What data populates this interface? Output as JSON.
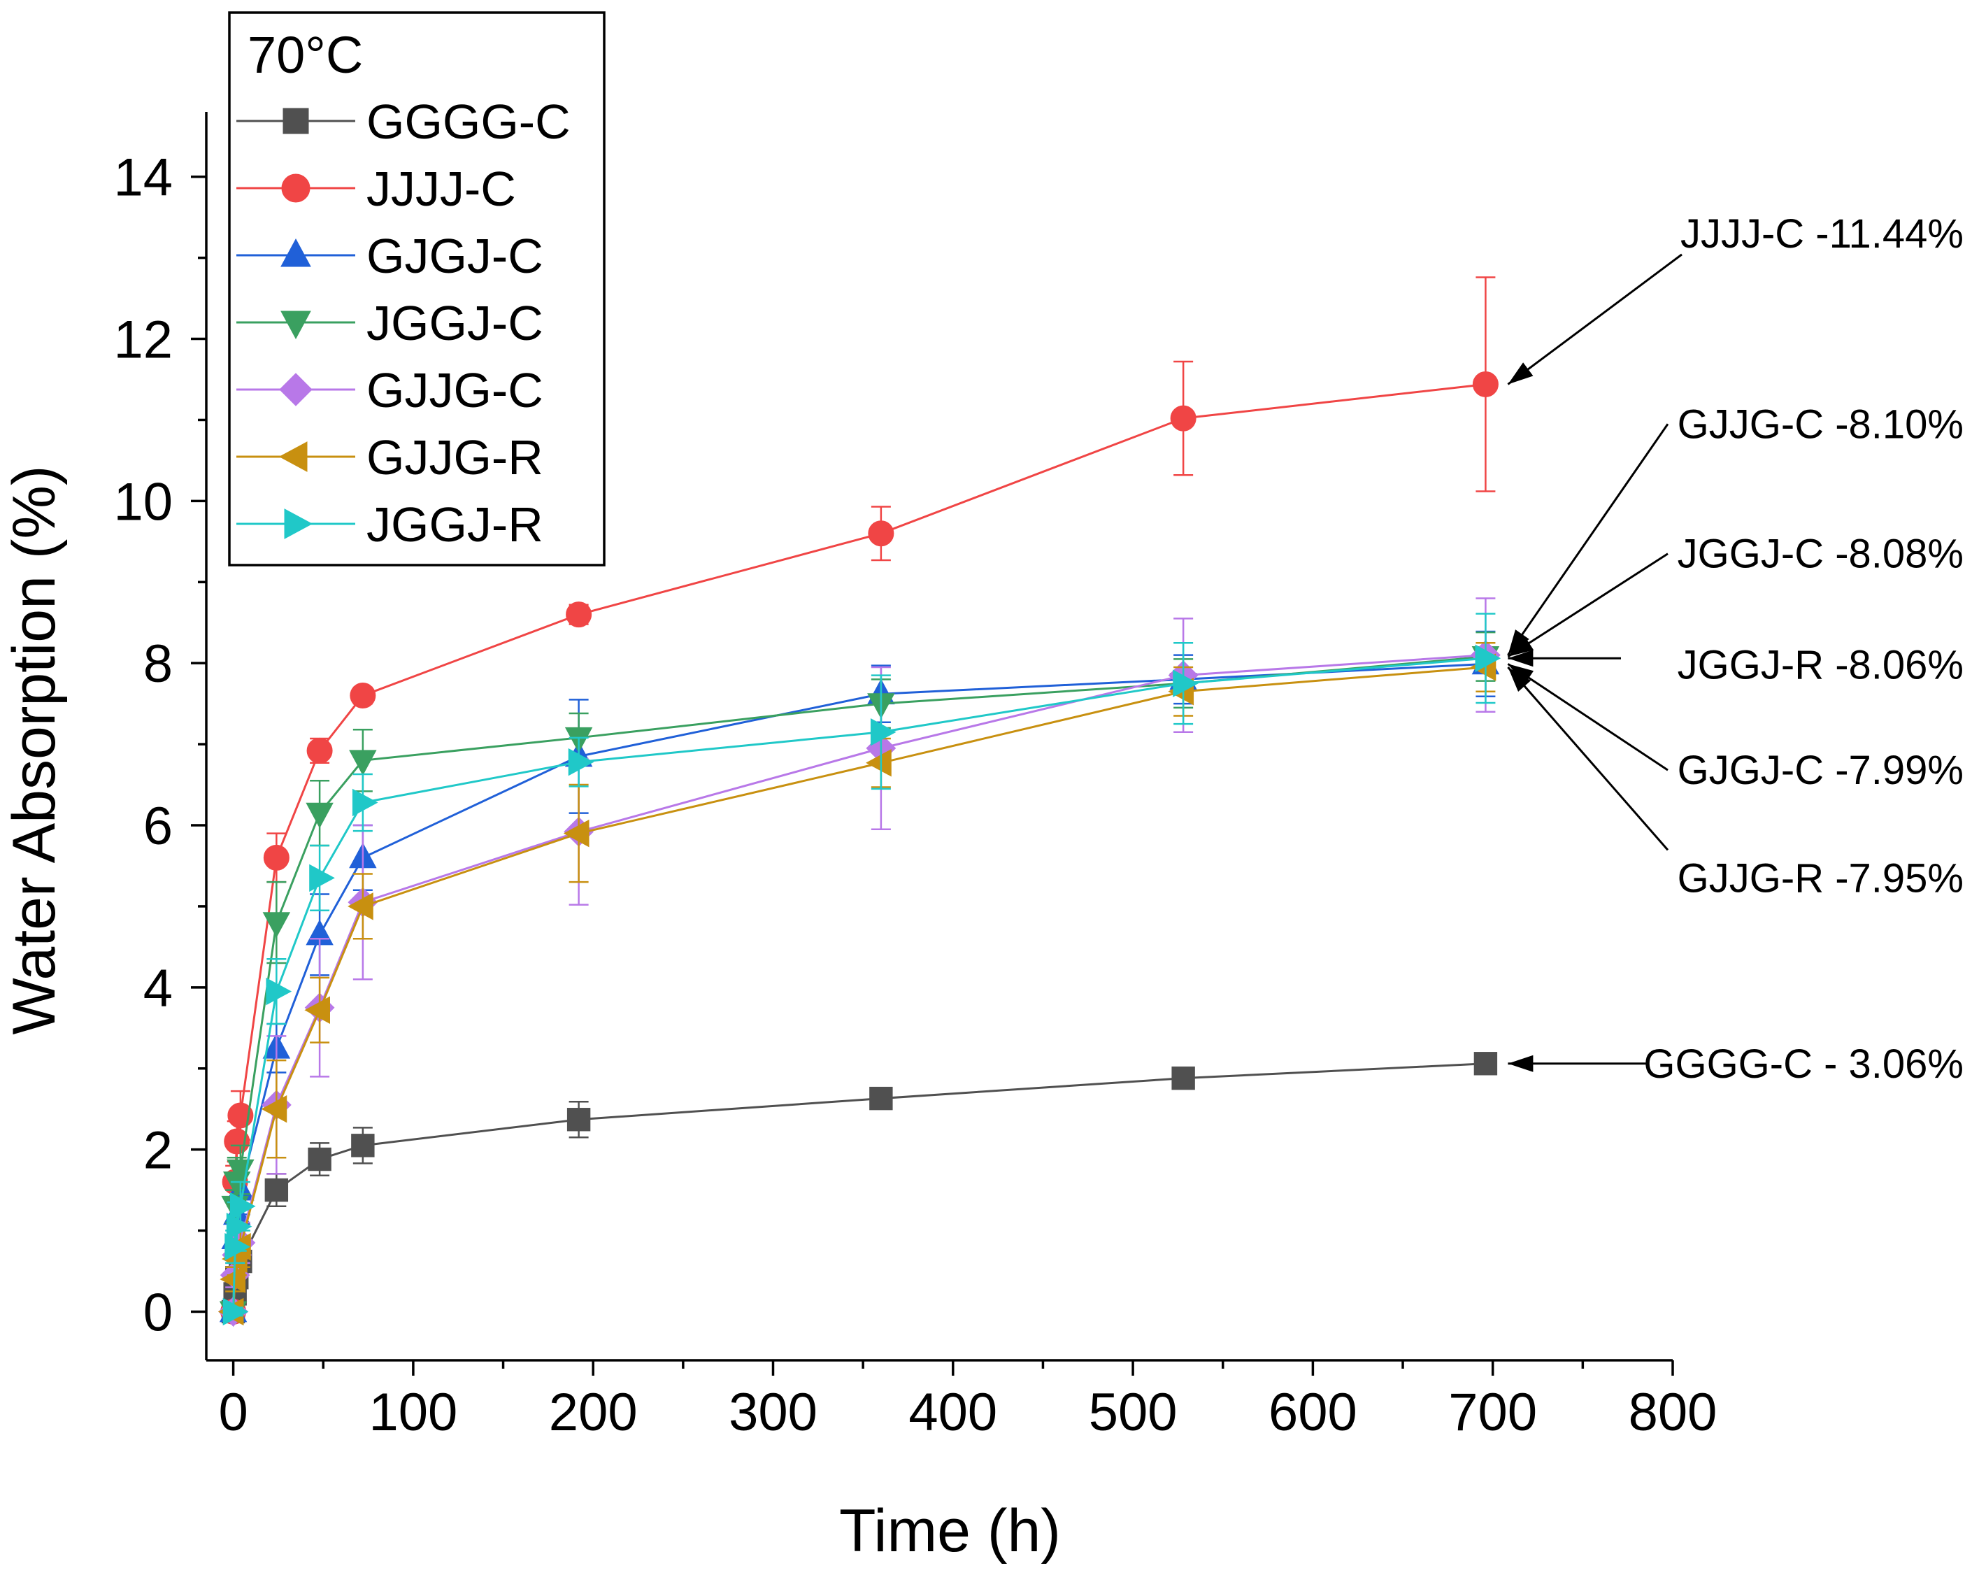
{
  "chart_data": {
    "type": "line",
    "xlabel": "Time (h)",
    "ylabel": "Water Absorption (%)",
    "xlim": [
      -15,
      800
    ],
    "ylim": [
      -0.6,
      14.8
    ],
    "xticks": [
      0,
      100,
      200,
      300,
      400,
      500,
      600,
      700,
      800
    ],
    "yticks": [
      0,
      2,
      4,
      6,
      8,
      10,
      12,
      14
    ],
    "legend_title": "70°C",
    "legend_position": "top-left",
    "series": [
      {
        "name": "GGGG-C",
        "color": "#505050",
        "marker": "square",
        "x": [
          0,
          1,
          2,
          4,
          24,
          48,
          72,
          192,
          360,
          528,
          696
        ],
        "y": [
          0,
          0.22,
          0.42,
          0.62,
          1.5,
          1.88,
          2.05,
          2.37,
          2.63,
          2.88,
          3.06
        ],
        "err": [
          0.05,
          0.08,
          0.1,
          0.12,
          0.2,
          0.2,
          0.22,
          0.22,
          0.1,
          0.1,
          0.1
        ]
      },
      {
        "name": "JJJJ-C",
        "color": "#f04545",
        "marker": "circle",
        "x": [
          0,
          1,
          2,
          4,
          24,
          48,
          72,
          192,
          360,
          528,
          696
        ],
        "y": [
          0,
          1.6,
          2.1,
          2.42,
          5.6,
          6.92,
          7.6,
          8.6,
          9.6,
          11.02,
          11.44
        ],
        "err": [
          0.05,
          0.2,
          0.25,
          0.3,
          0.3,
          0.15,
          0.1,
          0.12,
          0.33,
          0.7,
          1.32
        ]
      },
      {
        "name": "GJGJ-C",
        "color": "#2060d8",
        "marker": "triangle-up",
        "x": [
          0,
          1,
          2,
          4,
          24,
          48,
          72,
          192,
          360,
          528,
          696
        ],
        "y": [
          0,
          0.9,
          1.2,
          1.5,
          3.25,
          4.65,
          5.6,
          6.85,
          7.62,
          7.8,
          7.99
        ],
        "err": [
          0.05,
          0.2,
          0.3,
          0.3,
          0.3,
          0.5,
          0.4,
          0.7,
          0.35,
          0.3,
          0.4
        ]
      },
      {
        "name": "JGGJ-C",
        "color": "#3aa060",
        "marker": "triangle-down",
        "x": [
          0,
          1,
          2,
          4,
          24,
          48,
          72,
          192,
          360,
          528,
          696
        ],
        "y": [
          0,
          1.3,
          1.6,
          1.75,
          4.8,
          6.15,
          6.8,
          7.08,
          7.5,
          7.75,
          8.08
        ],
        "err": [
          0.05,
          0.2,
          0.3,
          0.3,
          0.5,
          0.4,
          0.38,
          0.3,
          0.3,
          0.3,
          0.3
        ]
      },
      {
        "name": "GJJG-C",
        "color": "#b878e8",
        "marker": "diamond",
        "x": [
          0,
          1,
          2,
          4,
          24,
          48,
          72,
          192,
          360,
          528,
          696
        ],
        "y": [
          0,
          0.45,
          0.7,
          0.85,
          2.55,
          3.75,
          5.05,
          5.92,
          6.95,
          7.85,
          8.1
        ],
        "err": [
          0.05,
          0.15,
          0.2,
          0.25,
          0.85,
          0.85,
          0.95,
          0.9,
          1.0,
          0.7,
          0.7
        ]
      },
      {
        "name": "GJJG-R",
        "color": "#c89010",
        "marker": "triangle-left",
        "x": [
          0,
          1,
          2,
          4,
          24,
          48,
          72,
          192,
          360,
          528,
          696
        ],
        "y": [
          0,
          0.4,
          0.65,
          0.8,
          2.5,
          3.72,
          5.0,
          5.9,
          6.77,
          7.65,
          7.95
        ],
        "err": [
          0.05,
          0.15,
          0.2,
          0.25,
          0.6,
          0.4,
          0.4,
          0.6,
          0.3,
          0.3,
          0.3
        ]
      },
      {
        "name": "JGGJ-R",
        "color": "#20c8c8",
        "marker": "triangle-right",
        "x": [
          0,
          1,
          2,
          4,
          24,
          48,
          72,
          192,
          360,
          528,
          696
        ],
        "y": [
          0,
          0.8,
          1.05,
          1.3,
          3.95,
          5.35,
          6.28,
          6.78,
          7.15,
          7.75,
          8.06
        ],
        "err": [
          0.05,
          0.2,
          0.3,
          0.3,
          0.4,
          0.4,
          0.35,
          0.3,
          0.7,
          0.5,
          0.55
        ]
      }
    ],
    "annotations": [
      {
        "text": "JJJJ-C -11.44%",
        "series": "JJJJ-C",
        "x": 696,
        "y": 11.44,
        "label_y": 13.3
      },
      {
        "text": "GJJG-C -8.10%",
        "series": "GJJG-C",
        "x": 696,
        "y": 8.1,
        "label_y": 10.95
      },
      {
        "text": "JGGJ-C -8.08%",
        "series": "JGGJ-C",
        "x": 696,
        "y": 8.08,
        "label_y": 9.35
      },
      {
        "text": "JGGJ-R -8.06%",
        "series": "JGGJ-R",
        "x": 696,
        "y": 8.06,
        "label_y": 7.98
      },
      {
        "text": "GJGJ-C -7.99%",
        "series": "GJGJ-C",
        "x": 696,
        "y": 7.99,
        "label_y": 6.68
      },
      {
        "text": "GJJG-R -7.95%",
        "series": "GJJG-R",
        "x": 696,
        "y": 7.95,
        "label_y": 5.35
      },
      {
        "text": "GGGG-C - 3.06%",
        "series": "GGGG-C",
        "x": 696,
        "y": 3.06,
        "label_y": 3.06
      }
    ]
  }
}
